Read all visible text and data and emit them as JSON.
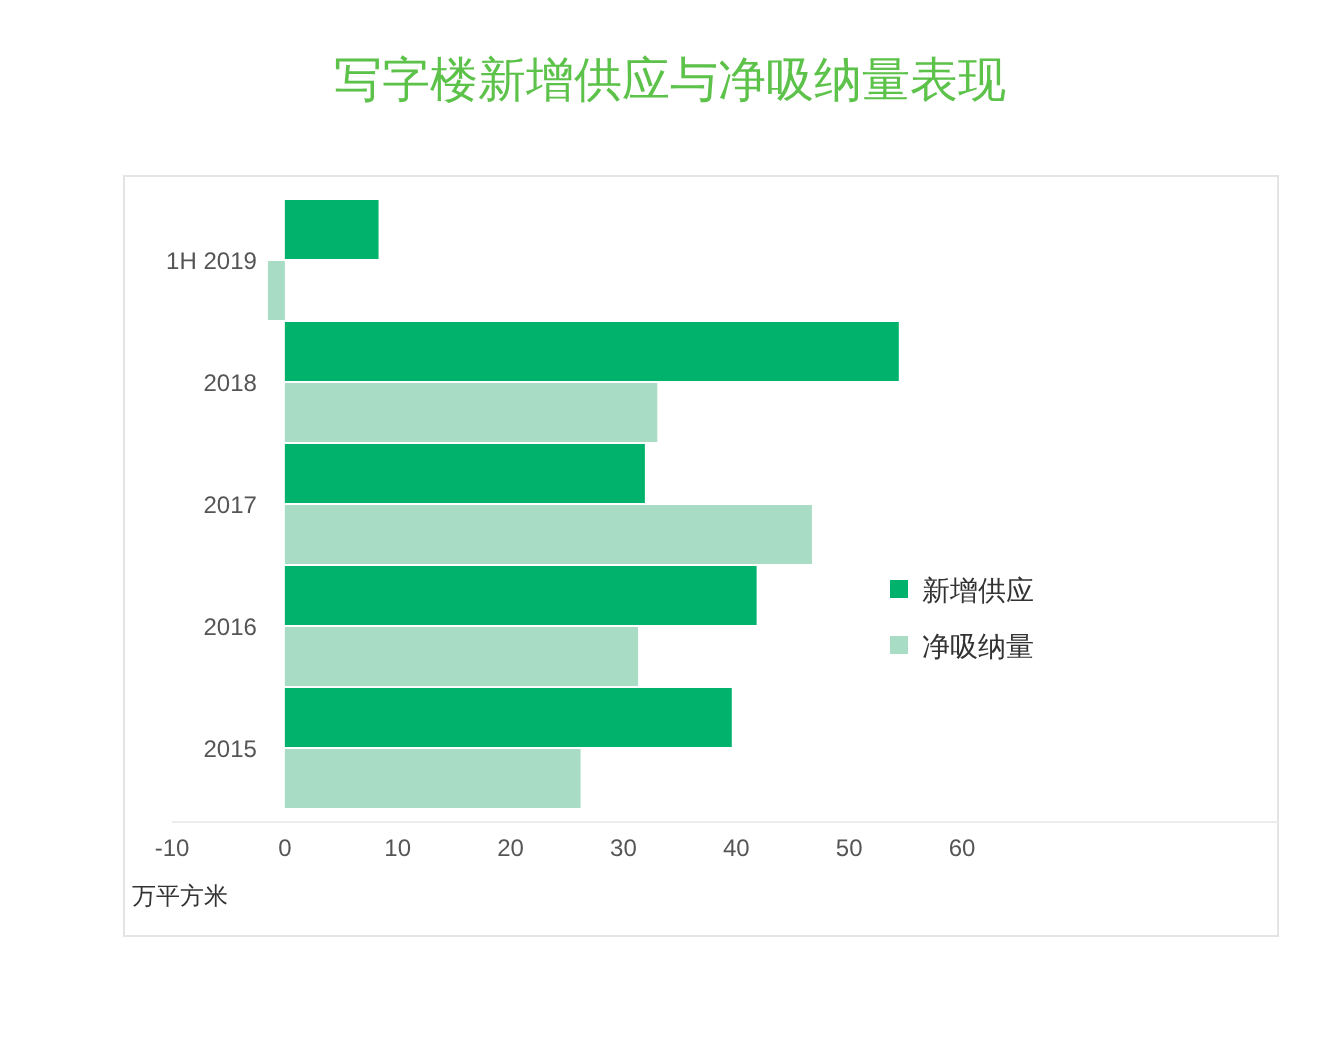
{
  "chart_data": {
    "type": "bar",
    "orientation": "horizontal",
    "title": "写字楼新增供应与净吸纳量表现",
    "xlabel": "万平方米",
    "categories": [
      "1H 2019",
      "2018",
      "2017",
      "2016",
      "2015"
    ],
    "series": [
      {
        "name": "新增供应",
        "color": "#00b26b",
        "values": [
          8.3,
          54.4,
          31.9,
          41.8,
          39.6
        ]
      },
      {
        "name": "净吸纳量",
        "color": "#a8dcc4",
        "values": [
          -1.5,
          33.0,
          46.7,
          31.3,
          26.2
        ]
      }
    ],
    "xlim": [
      -10,
      88
    ],
    "xticks": [
      -10,
      0,
      10,
      20,
      30,
      40,
      50,
      60
    ],
    "legend": "right"
  }
}
